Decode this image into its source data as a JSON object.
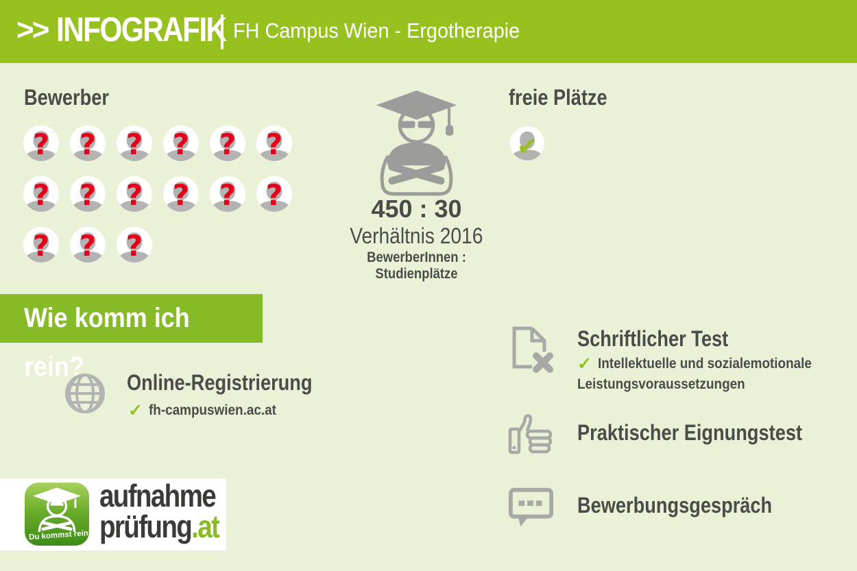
{
  "colors": {
    "brand_green": "#97c11f",
    "banner_green": "#86ba26",
    "background_green": "#e9f2d6",
    "silhouette_gray": "#b3b3b3",
    "outline_gray": "#a8a8a6",
    "question_red": "#e2001a",
    "check_green": "#95c11f",
    "text_dark": "#4c4b49",
    "logo_dark": "#3a3a38"
  },
  "header": {
    "chevrons": ">>",
    "title": "INFOGRAFIK",
    "subtitle": "FH Campus Wien - Ergotherapie"
  },
  "applicants": {
    "label": "Bewerber",
    "rows": [
      6,
      6,
      3
    ],
    "total_icons": 15,
    "question_glyph": "?"
  },
  "ratio": {
    "value": "450 : 30",
    "label": "Verhältnis 2016",
    "sublabel": "BewerberInnen : Studienplätze"
  },
  "free_places": {
    "label": "freie Plätze",
    "check_glyph": "✔"
  },
  "how_in": {
    "title": "Wie komm ich rein?"
  },
  "steps": {
    "check_glyph": "✓",
    "online": {
      "title": "Online-Registrierung",
      "detail": "fh-campuswien.ac.at"
    },
    "written": {
      "title": "Schriftlicher Test",
      "detail_line1": "Intellektuelle und sozialemotionale",
      "detail_line2": "Leistungsvoraussetzungen"
    },
    "practical": {
      "title": "Praktischer Eignungstest"
    },
    "interview": {
      "title": "Bewerbungsgespräch"
    }
  },
  "logo": {
    "badge": "Du kommst rein!",
    "line1": "aufnahme",
    "line2": "prüfung",
    "tld": ".at"
  }
}
